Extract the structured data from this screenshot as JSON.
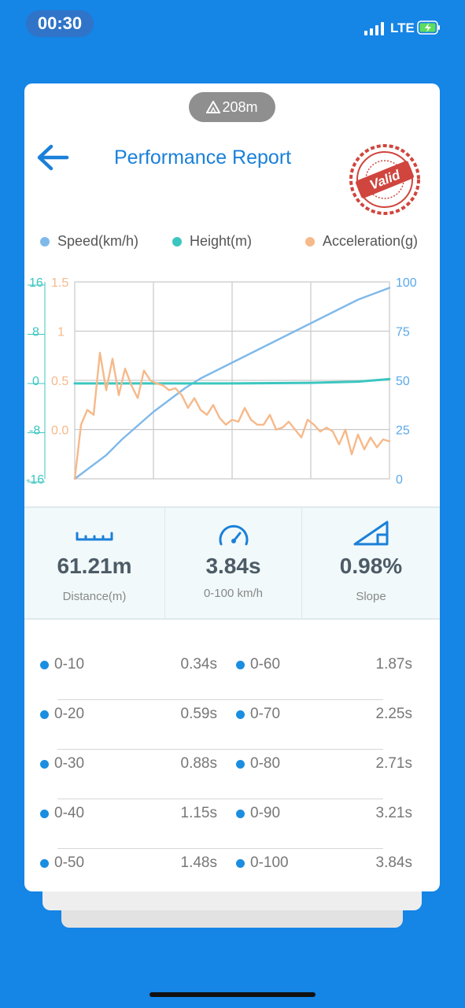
{
  "status": {
    "time": "00:30",
    "network": "LTE"
  },
  "header": {
    "altitude": "208m",
    "title": "Performance Report",
    "stamp_text": "Valid"
  },
  "legend": {
    "speed": "Speed(km/h)",
    "height": "Height(m)",
    "acceleration": "Acceleration(g)"
  },
  "colors": {
    "background": "#1585e6",
    "accent": "#1a80d9",
    "speed": "#7fb9ea",
    "height": "#3cc6c0",
    "acceleration": "#f6b98a",
    "stamp": "#d0453e"
  },
  "chart_data": {
    "type": "line",
    "axes": {
      "height_ticks": [
        "16",
        "8",
        "0",
        "-8",
        "-16"
      ],
      "accel_ticks": [
        "1.5",
        "1",
        "0.5",
        "0.0"
      ],
      "speed_ticks": [
        "100",
        "75",
        "50",
        "25",
        "0"
      ],
      "speed_ylim": [
        0,
        100
      ],
      "accel_ylim": [
        0,
        2
      ],
      "height_ylim": [
        -16,
        16
      ]
    },
    "series": [
      {
        "name": "Speed(km/h)",
        "x": [
          0,
          0.05,
          0.1,
          0.15,
          0.2,
          0.25,
          0.3,
          0.35,
          0.4,
          0.45,
          0.5,
          0.55,
          0.6,
          0.65,
          0.7,
          0.75,
          0.8,
          0.85,
          0.9,
          0.95,
          1.0
        ],
        "values": [
          0,
          6,
          12,
          20,
          27,
          34,
          40,
          46,
          51,
          55,
          59,
          63,
          67,
          71,
          75,
          79,
          83,
          87,
          91,
          94,
          97
        ]
      },
      {
        "name": "Height(m)",
        "x": [
          0,
          0.25,
          0.5,
          0.75,
          0.9,
          1.0
        ],
        "values": [
          -0.5,
          -0.5,
          -0.5,
          -0.4,
          -0.2,
          0.2
        ]
      },
      {
        "name": "Acceleration(g)",
        "x": [
          0,
          0.02,
          0.04,
          0.06,
          0.08,
          0.1,
          0.12,
          0.14,
          0.16,
          0.18,
          0.2,
          0.22,
          0.24,
          0.26,
          0.28,
          0.3,
          0.32,
          0.34,
          0.36,
          0.38,
          0.4,
          0.42,
          0.44,
          0.46,
          0.48,
          0.5,
          0.52,
          0.54,
          0.56,
          0.58,
          0.6,
          0.62,
          0.64,
          0.66,
          0.68,
          0.7,
          0.72,
          0.74,
          0.76,
          0.78,
          0.8,
          0.82,
          0.84,
          0.86,
          0.88,
          0.9,
          0.92,
          0.94,
          0.96,
          0.98,
          1.0
        ],
        "values": [
          0.0,
          0.55,
          0.7,
          0.65,
          1.28,
          0.9,
          1.22,
          0.85,
          1.12,
          0.95,
          0.82,
          1.1,
          1.0,
          0.97,
          0.95,
          0.9,
          0.92,
          0.85,
          0.72,
          0.82,
          0.7,
          0.65,
          0.75,
          0.62,
          0.55,
          0.6,
          0.58,
          0.72,
          0.6,
          0.55,
          0.55,
          0.65,
          0.5,
          0.52,
          0.58,
          0.5,
          0.42,
          0.6,
          0.55,
          0.48,
          0.52,
          0.48,
          0.35,
          0.5,
          0.25,
          0.45,
          0.3,
          0.42,
          0.32,
          0.4,
          0.38
        ]
      }
    ],
    "grid": true
  },
  "stats": {
    "distance": {
      "value": "61.21m",
      "label": "Distance(m)"
    },
    "time": {
      "value": "3.84s",
      "label": "0-100 km/h"
    },
    "slope": {
      "value": "0.98%",
      "label": "Slope"
    }
  },
  "splits": [
    {
      "left_label": "0-10",
      "left_time": "0.34s",
      "right_label": "0-60",
      "right_time": "1.87s"
    },
    {
      "left_label": "0-20",
      "left_time": "0.59s",
      "right_label": "0-70",
      "right_time": "2.25s"
    },
    {
      "left_label": "0-30",
      "left_time": "0.88s",
      "right_label": "0-80",
      "right_time": "2.71s"
    },
    {
      "left_label": "0-40",
      "left_time": "1.15s",
      "right_label": "0-90",
      "right_time": "3.21s"
    },
    {
      "left_label": "0-50",
      "left_time": "1.48s",
      "right_label": "0-100",
      "right_time": "3.84s"
    }
  ]
}
